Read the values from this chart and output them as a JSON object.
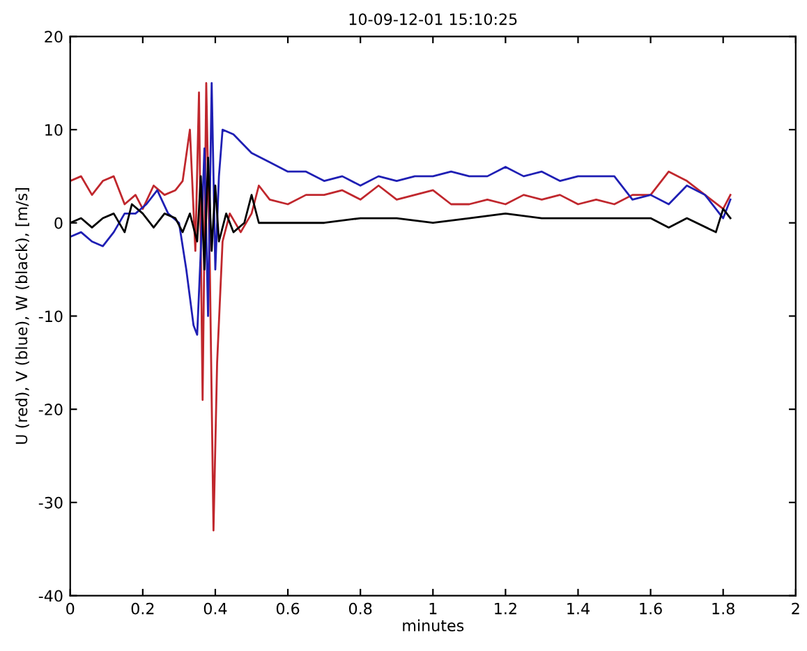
{
  "chart_data": {
    "type": "line",
    "title": "10-09-12-01 15:10:25",
    "xlabel": "minutes",
    "ylabel": "U (red), V (blue), W (black), [m/s]",
    "xlim": [
      0,
      2
    ],
    "xticks": [
      0,
      0.2,
      0.4,
      0.6,
      0.8,
      1,
      1.2,
      1.4,
      1.6,
      1.8,
      2
    ],
    "ylim": [
      -40,
      20
    ],
    "yticks": [
      -40,
      -30,
      -20,
      -10,
      0,
      10,
      20
    ],
    "grid": false,
    "marker": "none",
    "line_style": "solid",
    "series": [
      {
        "color": "#c0272d",
        "x": [
          0,
          0.03,
          0.06,
          0.09,
          0.12,
          0.15,
          0.18,
          0.2,
          0.23,
          0.26,
          0.29,
          0.31,
          0.33,
          0.345,
          0.355,
          0.365,
          0.375,
          0.385,
          0.395,
          0.405,
          0.42,
          0.44,
          0.47,
          0.5,
          0.52,
          0.55,
          0.6,
          0.65,
          0.7,
          0.75,
          0.8,
          0.85,
          0.9,
          0.95,
          1.0,
          1.05,
          1.1,
          1.15,
          1.2,
          1.25,
          1.3,
          1.35,
          1.4,
          1.45,
          1.5,
          1.55,
          1.6,
          1.65,
          1.7,
          1.75,
          1.8,
          1.82
        ],
        "values": [
          4.5,
          5,
          3,
          4.5,
          5,
          2,
          3,
          1.5,
          4,
          3,
          3.5,
          4.5,
          10,
          -3,
          14,
          -19,
          15,
          -5,
          -33,
          -15,
          -2,
          1,
          -1,
          1,
          4,
          2.5,
          2,
          3,
          3,
          3.5,
          2.5,
          4,
          2.5,
          3,
          3.5,
          2,
          2,
          2.5,
          2,
          3,
          2.5,
          3,
          2,
          2.5,
          2,
          3,
          3,
          5.5,
          4.5,
          3,
          1.5,
          3
        ]
      },
      {
        "color": "#1f1fb4",
        "x": [
          0,
          0.03,
          0.06,
          0.09,
          0.12,
          0.15,
          0.18,
          0.21,
          0.24,
          0.27,
          0.3,
          0.32,
          0.34,
          0.35,
          0.36,
          0.37,
          0.38,
          0.39,
          0.4,
          0.41,
          0.42,
          0.45,
          0.5,
          0.55,
          0.6,
          0.65,
          0.7,
          0.75,
          0.8,
          0.85,
          0.9,
          0.95,
          1.0,
          1.05,
          1.1,
          1.15,
          1.2,
          1.25,
          1.3,
          1.35,
          1.4,
          1.45,
          1.5,
          1.55,
          1.6,
          1.65,
          1.7,
          1.75,
          1.8,
          1.82
        ],
        "values": [
          -1.5,
          -1,
          -2,
          -2.5,
          -1,
          1,
          1,
          2,
          3.5,
          1,
          0,
          -5,
          -11,
          -12,
          -3,
          8,
          -10,
          15,
          -5,
          5,
          10,
          9.5,
          7.5,
          6.5,
          5.5,
          5.5,
          4.5,
          5,
          4,
          5,
          4.5,
          5,
          5,
          5.5,
          5,
          5,
          6,
          5,
          5.5,
          4.5,
          5,
          5,
          5,
          2.5,
          3,
          2,
          4,
          3,
          0.5,
          2.5
        ]
      },
      {
        "color": "#000000",
        "x": [
          0,
          0.03,
          0.06,
          0.09,
          0.12,
          0.15,
          0.17,
          0.2,
          0.23,
          0.26,
          0.29,
          0.31,
          0.33,
          0.35,
          0.36,
          0.37,
          0.38,
          0.39,
          0.4,
          0.41,
          0.43,
          0.45,
          0.48,
          0.5,
          0.52,
          0.6,
          0.7,
          0.8,
          0.9,
          1.0,
          1.1,
          1.2,
          1.3,
          1.4,
          1.5,
          1.6,
          1.65,
          1.7,
          1.78,
          1.8,
          1.82
        ],
        "values": [
          0,
          0.5,
          -0.5,
          0.5,
          1,
          -1,
          2,
          1,
          -0.5,
          1,
          0.5,
          -1,
          1,
          -2,
          5,
          -5,
          7,
          -3,
          4,
          -2,
          1,
          -1,
          0,
          3,
          0,
          0,
          0,
          0.5,
          0.5,
          0,
          0.5,
          1,
          0.5,
          0.5,
          0.5,
          0.5,
          -0.5,
          0.5,
          -1,
          1.5,
          0.5
        ]
      }
    ]
  }
}
